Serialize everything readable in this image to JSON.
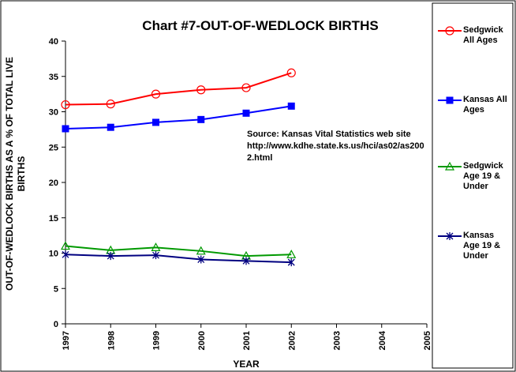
{
  "chart_data": {
    "type": "line",
    "title": "Chart #7-OUT-OF-WEDLOCK BIRTHS",
    "x_label": "YEAR",
    "y_label": "OUT-OF-WEDLOCK BIRTHS AS A % OF TOTAL LIVE BIRTHS",
    "annotation": "Source: Kansas Vital Statistics web site http://www.kdhe.state.ks.us/hci/as02/as2002.html",
    "x": [
      1997,
      1998,
      1999,
      2000,
      2001,
      2002
    ],
    "xlim": [
      1997,
      2005
    ],
    "xticks": [
      1997,
      1998,
      1999,
      2000,
      2001,
      2002,
      2003,
      2004,
      2005
    ],
    "ylim": [
      0,
      40
    ],
    "yticks": [
      0,
      5,
      10,
      15,
      20,
      25,
      30,
      35,
      40
    ],
    "grid": false,
    "legend": "right",
    "series": [
      {
        "name": "Sedgwick All Ages",
        "color": "#ff0000",
        "marker": "circle",
        "values": [
          31.0,
          31.1,
          32.5,
          33.1,
          33.4,
          35.5
        ]
      },
      {
        "name": "Kansas All Ages",
        "color": "#0000ff",
        "marker": "square",
        "values": [
          27.6,
          27.8,
          28.5,
          28.9,
          29.8,
          30.8
        ]
      },
      {
        "name": "Sedgwick Age 19 & Under",
        "color": "#009900",
        "marker": "triangle",
        "values": [
          11.0,
          10.4,
          10.8,
          10.3,
          9.6,
          9.8
        ]
      },
      {
        "name": "Kansas Age 19 & Under",
        "color": "#000080",
        "marker": "star",
        "values": [
          9.8,
          9.6,
          9.7,
          9.1,
          8.9,
          8.7
        ]
      }
    ]
  }
}
